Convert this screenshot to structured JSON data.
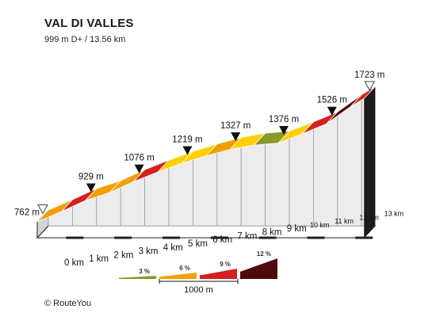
{
  "header": {
    "title": "VAL DI VALLES",
    "subtitle": "999 m D+ / 13.56 km"
  },
  "footer": {
    "credit": "© RouteYou"
  },
  "colors": {
    "grade_3": "#8a9a2a",
    "grade_4": "#ffd000",
    "grade_6": "#f0a000",
    "grade_9": "#d42020",
    "grade_12": "#4e0a0a",
    "side_face": "#ececec",
    "base": "#d4d4d4"
  },
  "chart_data": {
    "type": "area",
    "title": "VAL DI VALLES",
    "xlabel": "",
    "ylabel": "",
    "x_unit": "km",
    "y_unit": "m",
    "total_distance_km": 13.56,
    "total_ascent_m": 999,
    "km_ticks": [
      "0 km",
      "1 km",
      "2 km",
      "3 km",
      "4 km",
      "5 km",
      "6 km",
      "7 km",
      "8 km",
      "9 km",
      "10 km",
      "11 km",
      "12 km",
      "13 km"
    ],
    "elevation_markers": [
      {
        "km": 0,
        "label": "762 m",
        "type": "start"
      },
      {
        "km": 2,
        "label": "929 m",
        "type": "waypoint"
      },
      {
        "km": 4,
        "label": "1076 m",
        "type": "waypoint"
      },
      {
        "km": 6,
        "label": "1219 m",
        "type": "waypoint"
      },
      {
        "km": 8,
        "label": "1327 m",
        "type": "waypoint"
      },
      {
        "km": 10,
        "label": "1376 m",
        "type": "waypoint"
      },
      {
        "km": 12,
        "label": "1526 m",
        "type": "waypoint"
      },
      {
        "km": 13.56,
        "label": "1723 m",
        "type": "finish"
      }
    ],
    "points": [
      {
        "km": 0,
        "elevation": 762
      },
      {
        "km": 1,
        "elevation": 842
      },
      {
        "km": 2,
        "elevation": 929
      },
      {
        "km": 3,
        "elevation": 990
      },
      {
        "km": 4,
        "elevation": 1076
      },
      {
        "km": 5,
        "elevation": 1150
      },
      {
        "km": 6,
        "elevation": 1219
      },
      {
        "km": 7,
        "elevation": 1275
      },
      {
        "km": 8,
        "elevation": 1327
      },
      {
        "km": 9,
        "elevation": 1360
      },
      {
        "km": 10,
        "elevation": 1376
      },
      {
        "km": 11,
        "elevation": 1448
      },
      {
        "km": 12,
        "elevation": 1526
      },
      {
        "km": 13,
        "elevation": 1660
      },
      {
        "km": 13.56,
        "elevation": 1723
      }
    ],
    "segments": [
      {
        "from_km": 0,
        "to_km": 1,
        "grade": "6"
      },
      {
        "from_km": 1,
        "to_km": 2,
        "grade": "9"
      },
      {
        "from_km": 2,
        "to_km": 3,
        "grade": "6"
      },
      {
        "from_km": 3,
        "to_km": 4,
        "grade": "6"
      },
      {
        "from_km": 4,
        "to_km": 5,
        "grade": "9"
      },
      {
        "from_km": 5,
        "to_km": 6,
        "grade": "4"
      },
      {
        "from_km": 6,
        "to_km": 7,
        "grade": "4"
      },
      {
        "from_km": 7,
        "to_km": 8,
        "grade": "6"
      },
      {
        "from_km": 8,
        "to_km": 9,
        "grade": "4"
      },
      {
        "from_km": 9,
        "to_km": 10,
        "grade": "3"
      },
      {
        "from_km": 10,
        "to_km": 11,
        "grade": "4"
      },
      {
        "from_km": 11,
        "to_km": 12,
        "grade": "9"
      },
      {
        "from_km": 12,
        "to_km": 13,
        "grade": "12"
      },
      {
        "from_km": 13,
        "to_km": 13.56,
        "grade": "9"
      }
    ],
    "legend": {
      "entries": [
        {
          "grade": "3",
          "label": "3 %"
        },
        {
          "grade": "6",
          "label": "6 %"
        },
        {
          "grade": "9",
          "label": "9 %"
        },
        {
          "grade": "12",
          "label": "12 %"
        }
      ],
      "extra_color_grades": [
        "4"
      ],
      "scale_bar": "1000 m"
    }
  }
}
